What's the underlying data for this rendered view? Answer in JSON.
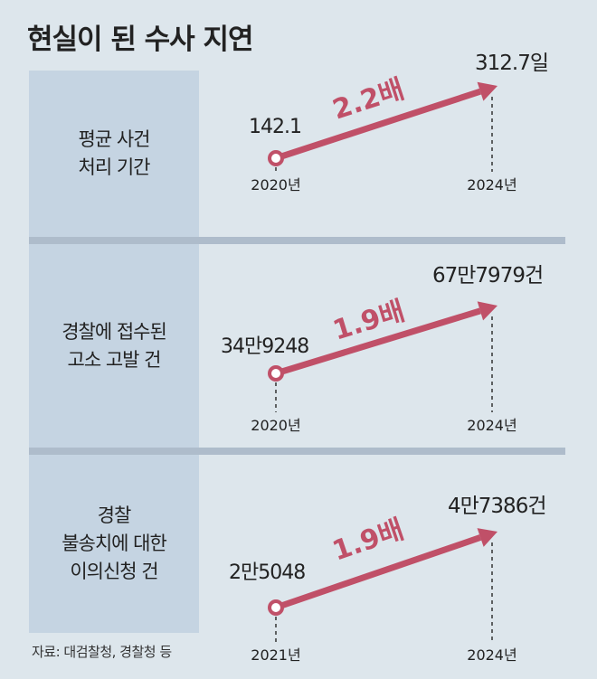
{
  "title": "현실이 된 수사 지연",
  "source": "자료: 대검찰청, 경찰청 등",
  "colors": {
    "arrow": "#c05068",
    "panel": "#c5d4e2",
    "background": "#dde6ec"
  },
  "chart_data": [
    {
      "type": "line",
      "label": "평균 사건\n처리 기간",
      "x": [
        "2020년",
        "2024년"
      ],
      "values": [
        142.1,
        312.7
      ],
      "value_labels": [
        "142.1",
        "312.7일"
      ],
      "ratio_label": "2.2배"
    },
    {
      "type": "line",
      "label": "경찰에 접수된\n고소 고발 건",
      "x": [
        "2020년",
        "2024년"
      ],
      "values": [
        349248,
        677979
      ],
      "value_labels": [
        "34만9248",
        "67만7979건"
      ],
      "ratio_label": "1.9배"
    },
    {
      "type": "line",
      "label": "경찰\n불송치에 대한\n이의신청 건",
      "x": [
        "2021년",
        "2024년"
      ],
      "values": [
        25048,
        47386
      ],
      "value_labels": [
        "2만5048",
        "4만7386건"
      ],
      "ratio_label": "1.9배"
    }
  ]
}
